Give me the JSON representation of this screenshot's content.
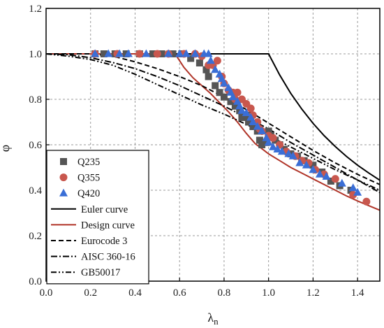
{
  "chart_data": {
    "type": "scatter",
    "xlabel": "λ",
    "xlabel_sub": "n",
    "ylabel": "φ",
    "xlim": [
      0.0,
      1.5
    ],
    "ylim": [
      0.0,
      1.2
    ],
    "grid": true,
    "legend_position": "bottom-left",
    "x_ticks": [
      "0.0",
      "0.2",
      "0.4",
      "0.6",
      "0.8",
      "1.0",
      "1.2",
      "1.4"
    ],
    "y_ticks": [
      "0.0",
      "0.2",
      "0.4",
      "0.6",
      "0.8",
      "1.0",
      "1.2"
    ],
    "scatter_series": [
      {
        "name": "Q235",
        "marker": "square",
        "color": "#555555",
        "points": [
          [
            0.22,
            1.0
          ],
          [
            0.26,
            1.0
          ],
          [
            0.31,
            1.0
          ],
          [
            0.36,
            1.0
          ],
          [
            0.42,
            1.0
          ],
          [
            0.48,
            1.0
          ],
          [
            0.52,
            1.0
          ],
          [
            0.57,
            1.0
          ],
          [
            0.61,
            1.0
          ],
          [
            0.65,
            0.98
          ],
          [
            0.69,
            0.96
          ],
          [
            0.72,
            0.93
          ],
          [
            0.73,
            0.9
          ],
          [
            0.76,
            0.86
          ],
          [
            0.78,
            0.83
          ],
          [
            0.8,
            0.81
          ],
          [
            0.83,
            0.79
          ],
          [
            0.85,
            0.77
          ],
          [
            0.87,
            0.75
          ],
          [
            0.88,
            0.72
          ],
          [
            0.9,
            0.73
          ],
          [
            0.91,
            0.7
          ],
          [
            0.93,
            0.68
          ],
          [
            0.95,
            0.66
          ],
          [
            0.96,
            0.62
          ],
          [
            0.97,
            0.6
          ],
          [
            0.99,
            0.61
          ],
          [
            1.0,
            0.66
          ],
          [
            1.01,
            0.64
          ],
          [
            1.03,
            0.62
          ],
          [
            1.05,
            0.6
          ],
          [
            1.07,
            0.58
          ],
          [
            1.1,
            0.56
          ],
          [
            1.13,
            0.55
          ],
          [
            1.16,
            0.53
          ],
          [
            1.2,
            0.51
          ],
          [
            1.24,
            0.48
          ],
          [
            1.28,
            0.44
          ],
          [
            1.32,
            0.42
          ],
          [
            1.37,
            0.4
          ]
        ]
      },
      {
        "name": "Q355",
        "marker": "circle",
        "color": "#c8574e",
        "points": [
          [
            0.22,
            1.0
          ],
          [
            0.32,
            1.0
          ],
          [
            0.42,
            1.0
          ],
          [
            0.5,
            1.0
          ],
          [
            0.55,
            1.0
          ],
          [
            0.62,
            1.0
          ],
          [
            0.67,
            1.0
          ],
          [
            0.7,
            0.99
          ],
          [
            0.73,
            0.95
          ],
          [
            0.75,
            0.95
          ],
          [
            0.77,
            0.97
          ],
          [
            0.79,
            0.9
          ],
          [
            0.8,
            0.87
          ],
          [
            0.82,
            0.84
          ],
          [
            0.84,
            0.83
          ],
          [
            0.85,
            0.8
          ],
          [
            0.86,
            0.83
          ],
          [
            0.88,
            0.8
          ],
          [
            0.9,
            0.78
          ],
          [
            0.92,
            0.76
          ],
          [
            0.93,
            0.73
          ],
          [
            0.95,
            0.7
          ],
          [
            0.96,
            0.67
          ],
          [
            0.97,
            0.66
          ],
          [
            1.0,
            0.64
          ],
          [
            1.02,
            0.63
          ],
          [
            1.05,
            0.6
          ],
          [
            1.08,
            0.57
          ],
          [
            1.12,
            0.55
          ],
          [
            1.15,
            0.53
          ],
          [
            1.18,
            0.52
          ],
          [
            1.21,
            0.49
          ],
          [
            1.25,
            0.47
          ],
          [
            1.3,
            0.45
          ],
          [
            1.38,
            0.38
          ],
          [
            1.44,
            0.35
          ]
        ]
      },
      {
        "name": "Q420",
        "marker": "triangle",
        "color": "#3a6ed6",
        "points": [
          [
            0.22,
            1.0
          ],
          [
            0.28,
            1.0
          ],
          [
            0.33,
            1.0
          ],
          [
            0.37,
            1.0
          ],
          [
            0.45,
            1.0
          ],
          [
            0.55,
            1.0
          ],
          [
            0.6,
            1.0
          ],
          [
            0.63,
            1.0
          ],
          [
            0.67,
            1.0
          ],
          [
            0.71,
            1.0
          ],
          [
            0.73,
            1.0
          ],
          [
            0.74,
            0.97
          ],
          [
            0.76,
            0.93
          ],
          [
            0.78,
            0.91
          ],
          [
            0.79,
            0.89
          ],
          [
            0.8,
            0.87
          ],
          [
            0.82,
            0.85
          ],
          [
            0.83,
            0.83
          ],
          [
            0.84,
            0.81
          ],
          [
            0.86,
            0.79
          ],
          [
            0.87,
            0.77
          ],
          [
            0.88,
            0.75
          ],
          [
            0.9,
            0.74
          ],
          [
            0.92,
            0.72
          ],
          [
            0.93,
            0.7
          ],
          [
            0.95,
            0.68
          ],
          [
            0.97,
            0.66
          ],
          [
            0.99,
            0.63
          ],
          [
            1.0,
            0.61
          ],
          [
            1.02,
            0.59
          ],
          [
            1.04,
            0.58
          ],
          [
            1.06,
            0.57
          ],
          [
            1.09,
            0.56
          ],
          [
            1.11,
            0.55
          ],
          [
            1.14,
            0.52
          ],
          [
            1.17,
            0.51
          ],
          [
            1.2,
            0.49
          ],
          [
            1.23,
            0.47
          ],
          [
            1.26,
            0.46
          ],
          [
            1.33,
            0.43
          ],
          [
            1.38,
            0.41
          ],
          [
            1.4,
            0.39
          ]
        ]
      }
    ],
    "curve_series": [
      {
        "name": "Euler curve",
        "style": "solid",
        "color": "#000000",
        "points": [
          [
            0.0,
            1.0
          ],
          [
            1.0,
            1.0
          ],
          [
            1.05,
            0.907
          ],
          [
            1.1,
            0.826
          ],
          [
            1.15,
            0.756
          ],
          [
            1.2,
            0.694
          ],
          [
            1.25,
            0.64
          ],
          [
            1.3,
            0.592
          ],
          [
            1.35,
            0.549
          ],
          [
            1.4,
            0.51
          ],
          [
            1.45,
            0.476
          ],
          [
            1.5,
            0.444
          ]
        ]
      },
      {
        "name": "Design curve",
        "style": "solid",
        "color": "#b03428",
        "points": [
          [
            0.0,
            1.0
          ],
          [
            0.58,
            1.0
          ],
          [
            0.62,
            0.94
          ],
          [
            0.66,
            0.895
          ],
          [
            0.7,
            0.86
          ],
          [
            0.74,
            0.825
          ],
          [
            0.78,
            0.785
          ],
          [
            0.82,
            0.745
          ],
          [
            0.86,
            0.7
          ],
          [
            0.9,
            0.65
          ],
          [
            0.94,
            0.605
          ],
          [
            0.98,
            0.575
          ],
          [
            1.0,
            0.56
          ],
          [
            1.05,
            0.53
          ],
          [
            1.1,
            0.5
          ],
          [
            1.15,
            0.475
          ],
          [
            1.2,
            0.45
          ],
          [
            1.25,
            0.425
          ],
          [
            1.3,
            0.4
          ],
          [
            1.35,
            0.375
          ],
          [
            1.4,
            0.353
          ],
          [
            1.45,
            0.332
          ],
          [
            1.5,
            0.312
          ]
        ]
      },
      {
        "name": "Eurocode 3",
        "style": "dash",
        "color": "#000000",
        "points": [
          [
            0.0,
            1.0
          ],
          [
            0.2,
            1.0
          ],
          [
            0.3,
            0.99
          ],
          [
            0.4,
            0.965
          ],
          [
            0.5,
            0.935
          ],
          [
            0.6,
            0.9
          ],
          [
            0.7,
            0.86
          ],
          [
            0.8,
            0.81
          ],
          [
            0.9,
            0.755
          ],
          [
            1.0,
            0.695
          ],
          [
            1.1,
            0.635
          ],
          [
            1.2,
            0.575
          ],
          [
            1.3,
            0.52
          ],
          [
            1.4,
            0.47
          ],
          [
            1.5,
            0.425
          ]
        ]
      },
      {
        "name": "AISC 360-16",
        "style": "dashdot",
        "color": "#000000",
        "points": [
          [
            0.0,
            1.0
          ],
          [
            0.1,
            0.996
          ],
          [
            0.2,
            0.983
          ],
          [
            0.3,
            0.962
          ],
          [
            0.4,
            0.935
          ],
          [
            0.5,
            0.9
          ],
          [
            0.6,
            0.86
          ],
          [
            0.7,
            0.815
          ],
          [
            0.8,
            0.77
          ],
          [
            0.9,
            0.72
          ],
          [
            1.0,
            0.67
          ],
          [
            1.1,
            0.61
          ],
          [
            1.2,
            0.555
          ],
          [
            1.3,
            0.5
          ],
          [
            1.4,
            0.445
          ],
          [
            1.5,
            0.39
          ]
        ]
      },
      {
        "name": "GB50017",
        "style": "dashdotdot",
        "color": "#000000",
        "points": [
          [
            0.0,
            1.0
          ],
          [
            0.1,
            0.99
          ],
          [
            0.2,
            0.975
          ],
          [
            0.3,
            0.95
          ],
          [
            0.4,
            0.91
          ],
          [
            0.5,
            0.865
          ],
          [
            0.6,
            0.82
          ],
          [
            0.7,
            0.775
          ],
          [
            0.8,
            0.735
          ],
          [
            0.9,
            0.69
          ],
          [
            1.0,
            0.64
          ],
          [
            1.1,
            0.59
          ],
          [
            1.2,
            0.54
          ],
          [
            1.3,
            0.49
          ],
          [
            1.4,
            0.445
          ],
          [
            1.5,
            0.4
          ]
        ]
      }
    ]
  }
}
